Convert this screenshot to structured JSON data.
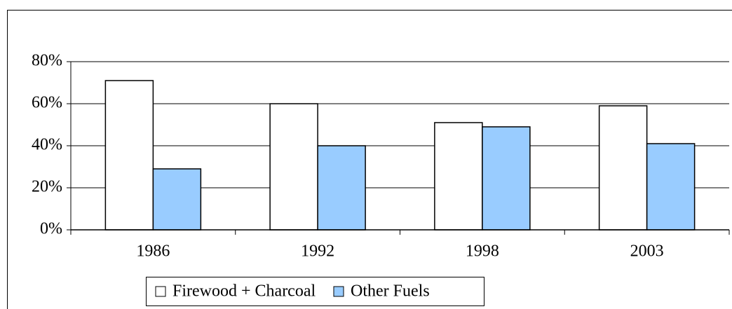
{
  "chart_data": {
    "type": "bar",
    "categories": [
      "1986",
      "1992",
      "1998",
      "2003"
    ],
    "series": [
      {
        "name": "Firewood + Charcoal",
        "color": "#ffffff",
        "values": [
          71,
          60,
          51,
          59
        ]
      },
      {
        "name": "Other Fuels",
        "color": "#99ccff",
        "values": [
          29,
          40,
          49,
          41
        ]
      }
    ],
    "ylim": [
      0,
      80
    ],
    "yticks": [
      {
        "value": 0,
        "label": "0%"
      },
      {
        "value": 20,
        "label": "20%"
      },
      {
        "value": 40,
        "label": "40%"
      },
      {
        "value": 60,
        "label": "60%"
      },
      {
        "value": 80,
        "label": "80%"
      }
    ],
    "grid": true,
    "legend": "bottom"
  }
}
